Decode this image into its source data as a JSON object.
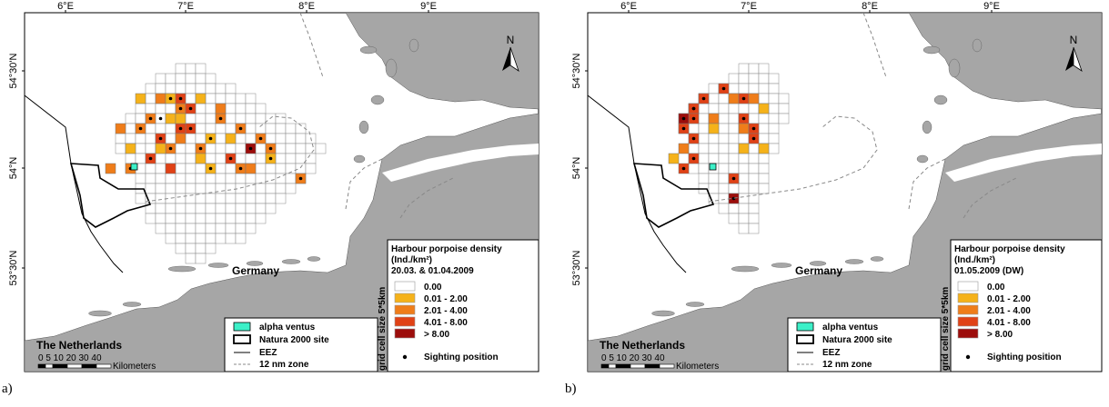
{
  "panels": [
    {
      "id": "a",
      "caption": "a)",
      "legend_title": "Harbour porpoise density",
      "legend_unit": "(Ind./km²)",
      "legend_date": "20.03. & 01.04.2009",
      "cells": [
        [
          0,
          0.85,
          0.3,
          2
        ],
        [
          0,
          0.96,
          0.25,
          1
        ],
        [
          0,
          0.7,
          0.3,
          1
        ],
        [
          0,
          1.05,
          0.35,
          2
        ],
        [
          0,
          1.2,
          0.4,
          3
        ],
        [
          0,
          0.75,
          0.45,
          2
        ],
        [
          0,
          0.95,
          0.5,
          1
        ],
        [
          0,
          1.45,
          0.45,
          2
        ],
        [
          0,
          1.2,
          0.55,
          3
        ],
        [
          0,
          0.65,
          0.6,
          2
        ],
        [
          0,
          1.05,
          0.6,
          3
        ],
        [
          0,
          1.35,
          0.65,
          1
        ],
        [
          0,
          1.65,
          0.6,
          2
        ],
        [
          0,
          0.85,
          0.65,
          3
        ],
        [
          0,
          1.55,
          0.7,
          1
        ],
        [
          0,
          1.3,
          0.75,
          2
        ],
        [
          0,
          0.55,
          0.75,
          1
        ],
        [
          0,
          1.75,
          0.75,
          4
        ],
        [
          0,
          1.9,
          0.65,
          2
        ],
        [
          0,
          1.0,
          0.8,
          2
        ],
        [
          0,
          0.75,
          0.85,
          3
        ],
        [
          0,
          1.55,
          0.85,
          3
        ],
        [
          0,
          1.25,
          0.9,
          1
        ],
        [
          0,
          1.1,
          0.25,
          3
        ],
        [
          0,
          1.3,
          0.3,
          1
        ],
        [
          0,
          0.5,
          0.55,
          2
        ],
        [
          0,
          2.05,
          0.75,
          2
        ],
        [
          0,
          1.5,
          0.35,
          2
        ],
        [
          0,
          0.6,
          0.95,
          2
        ],
        [
          0,
          1.4,
          0.95,
          1
        ],
        [
          0,
          1.7,
          1.0,
          2
        ],
        [
          0,
          1.05,
          0.45,
          1
        ],
        [
          0,
          0.9,
          0.75,
          1
        ],
        [
          0,
          1.15,
          0.7,
          2
        ],
        [
          0,
          2.3,
          1.05,
          2
        ],
        [
          0,
          1.95,
          0.9,
          1
        ],
        [
          0,
          0.35,
          0.95,
          2
        ],
        [
          0,
          0.95,
          1.0,
          3
        ],
        [
          0,
          1.8,
          0.95,
          2
        ]
      ],
      "sightings": [
        [
          0.96,
          0.25
        ],
        [
          1.05,
          0.35
        ],
        [
          1.2,
          0.4
        ],
        [
          0.75,
          0.45
        ],
        [
          1.45,
          0.45
        ],
        [
          1.2,
          0.55
        ],
        [
          1.05,
          0.6
        ],
        [
          1.65,
          0.6
        ],
        [
          0.85,
          0.65
        ],
        [
          1.3,
          0.75
        ],
        [
          1.75,
          0.75
        ],
        [
          0.75,
          0.85
        ],
        [
          1.55,
          0.85
        ],
        [
          1.1,
          0.25
        ],
        [
          0.9,
          0.5
        ],
        [
          1.9,
          0.65
        ],
        [
          2.05,
          0.75
        ],
        [
          0.65,
          0.6
        ],
        [
          1.35,
          0.65
        ],
        [
          1.7,
          1.0
        ],
        [
          1.95,
          0.9
        ],
        [
          1.0,
          0.8
        ],
        [
          2.3,
          1.05
        ],
        [
          0.6,
          0.95
        ],
        [
          1.4,
          0.95
        ]
      ]
    },
    {
      "id": "b",
      "caption": "b)",
      "legend_title": "Harbour porpoise density",
      "legend_unit": "(Ind./km²)",
      "legend_date": "01.05.2009 (DW)",
      "cells": [
        [
          0,
          0.5,
          0.45,
          2
        ],
        [
          0,
          0.55,
          0.4,
          3
        ],
        [
          0,
          0.6,
          0.35,
          3
        ],
        [
          0,
          0.5,
          0.55,
          2
        ],
        [
          0,
          0.45,
          0.6,
          3
        ],
        [
          0,
          0.55,
          0.65,
          3
        ],
        [
          0,
          0.6,
          0.5,
          3
        ],
        [
          0,
          0.65,
          0.3,
          2
        ],
        [
          0,
          0.7,
          0.25,
          3
        ],
        [
          0,
          0.9,
          0.2,
          3
        ],
        [
          0,
          0.95,
          0.25,
          2
        ],
        [
          0,
          1.05,
          0.25,
          3
        ],
        [
          0,
          1.2,
          0.3,
          2
        ],
        [
          0,
          1.25,
          0.35,
          1
        ],
        [
          0,
          1.1,
          0.45,
          3
        ],
        [
          0,
          1.15,
          0.55,
          2
        ],
        [
          0,
          1.2,
          0.6,
          3
        ],
        [
          0,
          1.2,
          0.7,
          3
        ],
        [
          0,
          1.3,
          0.75,
          1
        ],
        [
          0,
          0.45,
          0.75,
          2
        ],
        [
          0,
          0.4,
          0.85,
          1
        ],
        [
          0,
          0.55,
          0.85,
          3
        ],
        [
          0,
          0.5,
          0.95,
          3
        ],
        [
          0,
          1.0,
          1.05,
          4
        ],
        [
          0,
          0.95,
          1.15,
          3
        ],
        [
          0,
          1.0,
          1.25,
          4
        ],
        [
          0,
          0.8,
          0.45,
          2
        ],
        [
          0,
          0.75,
          0.6,
          1
        ],
        [
          0,
          1.1,
          0.75,
          1
        ],
        [
          0,
          0.45,
          0.5,
          4
        ]
      ],
      "sightings": [
        [
          0.55,
          0.4
        ],
        [
          0.6,
          0.35
        ],
        [
          0.45,
          0.6
        ],
        [
          0.55,
          0.65
        ],
        [
          0.6,
          0.5
        ],
        [
          0.7,
          0.25
        ],
        [
          0.9,
          0.2
        ],
        [
          1.05,
          0.25
        ],
        [
          1.1,
          0.45
        ],
        [
          1.2,
          0.6
        ],
        [
          1.2,
          0.7
        ],
        [
          0.55,
          0.85
        ],
        [
          0.5,
          0.95
        ],
        [
          0.95,
          1.15
        ],
        [
          1.0,
          1.25
        ],
        [
          0.5,
          0.45
        ]
      ]
    }
  ],
  "axes": {
    "lon_ticks": [
      "6°E",
      "7°E",
      "8°E",
      "9°E"
    ],
    "lat_ticks": [
      "54°30'N",
      "54°N",
      "53°30'N"
    ]
  },
  "labels": {
    "germany": "Germany",
    "netherlands": "The Netherlands",
    "north": "N",
    "grid_note": "grid cell size 5*5km",
    "scale_numbers": "0 5 10   20   30   40",
    "scale_unit": "Kilometers"
  },
  "legend_left": {
    "alpha_ventus": "alpha ventus",
    "natura": "Natura 2000 site",
    "eez": "EEZ",
    "zone12": "12 nm zone"
  },
  "legend_classes": [
    "0.00",
    "0.01 - 2.00",
    "2.01 - 4.00",
    "4.01 - 8.00",
    "> 8.00"
  ],
  "legend_sighting": "Sighting position",
  "colors": {
    "land": "#a6a6a6",
    "class0": "#ffffff",
    "class1": "#f5b21a",
    "class2": "#ef7d1a",
    "class3": "#e04216",
    "class4": "#9c0d0b",
    "alpha_ventus": "#3cf0c8"
  }
}
